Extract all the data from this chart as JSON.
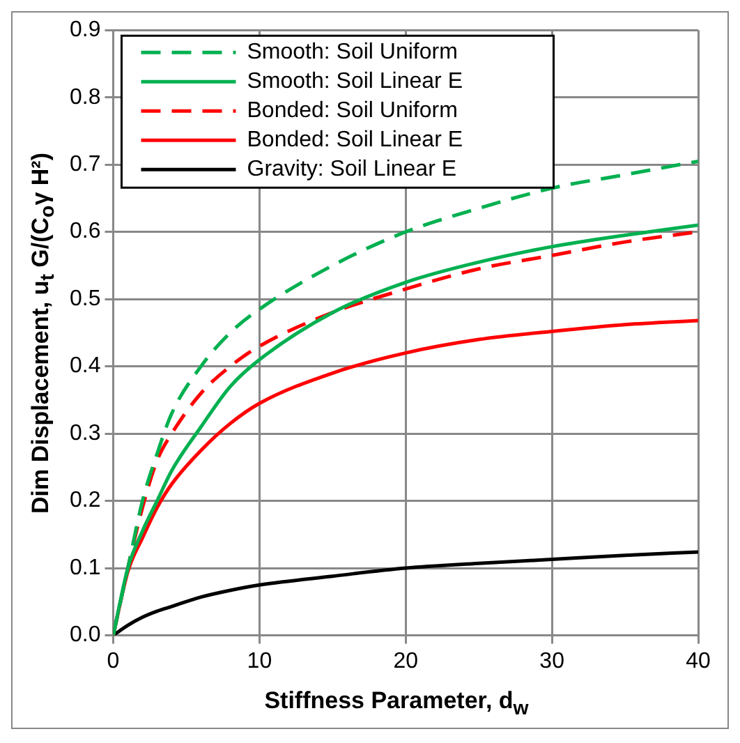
{
  "chart_data": {
    "type": "line",
    "xlabel": "Stiffness Parameter, d$_{w}$",
    "ylabel": "Dim Displacement, u$_{t}$ G/(C$_{o}$γ H²)",
    "xlim": [
      0,
      40
    ],
    "xticks": [
      0,
      10,
      20,
      30,
      40
    ],
    "ylim": [
      0,
      0.9
    ],
    "yticks": [
      {
        "value": 0,
        "label": "0.0"
      },
      {
        "value": 0.1,
        "label": "0.1"
      },
      {
        "value": 0.2,
        "label": "0.2"
      },
      {
        "value": 0.3,
        "label": "0.3"
      },
      {
        "value": 0.4,
        "label": "0.4"
      },
      {
        "value": 0.5,
        "label": "0.5"
      },
      {
        "value": 0.6,
        "label": "0.6"
      },
      {
        "value": 0.7,
        "label": "0.7"
      },
      {
        "value": 0.8,
        "label": "0.8"
      },
      {
        "value": 0.9,
        "label": "0.9"
      }
    ],
    "grid": true,
    "legend": "top left",
    "marker": "none",
    "x": [
      0,
      1,
      2,
      3,
      4,
      6,
      8,
      10,
      15,
      20,
      25,
      30,
      35,
      40
    ],
    "series": [
      {
        "name": "Smooth: Soil Uniform",
        "color": "#00b050",
        "line_style": "dashed",
        "values": [
          0,
          0.1,
          0.2,
          0.27,
          0.33,
          0.4,
          0.45,
          0.485,
          0.55,
          0.6,
          0.635,
          0.665,
          0.685,
          0.705
        ]
      },
      {
        "name": "Smooth: Soil Linear E",
        "color": "#00b050",
        "line_style": "solid",
        "values": [
          0,
          0.1,
          0.155,
          0.2,
          0.245,
          0.31,
          0.37,
          0.41,
          0.48,
          0.525,
          0.555,
          0.578,
          0.595,
          0.61
        ]
      },
      {
        "name": "Bonded: Soil Uniform",
        "color": "#ff0000",
        "line_style": "dashed",
        "values": [
          0,
          0.1,
          0.19,
          0.26,
          0.3,
          0.36,
          0.4,
          0.43,
          0.48,
          0.515,
          0.545,
          0.565,
          0.585,
          0.6
        ]
      },
      {
        "name": "Bonded: Soil Linear E",
        "color": "#ff0000",
        "line_style": "solid",
        "values": [
          0,
          0.095,
          0.145,
          0.19,
          0.225,
          0.275,
          0.315,
          0.345,
          0.39,
          0.42,
          0.44,
          0.452,
          0.462,
          0.468
        ]
      },
      {
        "name": "Gravity: Soil Linear E",
        "color": "#000000",
        "line_style": "solid",
        "values": [
          0,
          0.015,
          0.027,
          0.036,
          0.043,
          0.057,
          0.067,
          0.075,
          0.088,
          0.1,
          0.107,
          0.113,
          0.119,
          0.124
        ]
      }
    ]
  }
}
